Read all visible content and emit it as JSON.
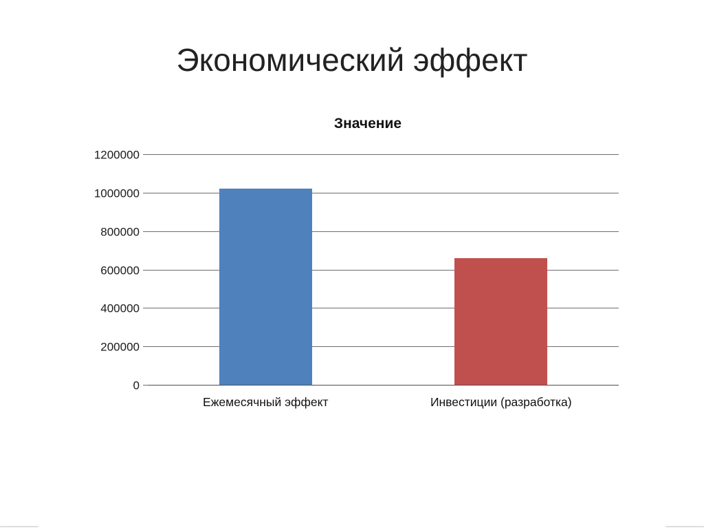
{
  "slide": {
    "title": "Экономический эффект"
  },
  "chart_data": {
    "type": "bar",
    "title": "Значение",
    "categories": [
      "Ежемесячный эффект",
      "Инвестиции (разработка)"
    ],
    "values": [
      1020000,
      660000
    ],
    "bar_colors": [
      "#4f81bd",
      "#c0504d"
    ],
    "xlabel": "",
    "ylabel": "",
    "ylim": [
      0,
      1200000
    ],
    "yticks": [
      1200000,
      1000000,
      800000,
      600000,
      400000,
      200000,
      0
    ],
    "grid": true,
    "legend_position": "none",
    "colors": {
      "gridline": "#6d6d6d",
      "text": "#1a1a1a"
    }
  }
}
